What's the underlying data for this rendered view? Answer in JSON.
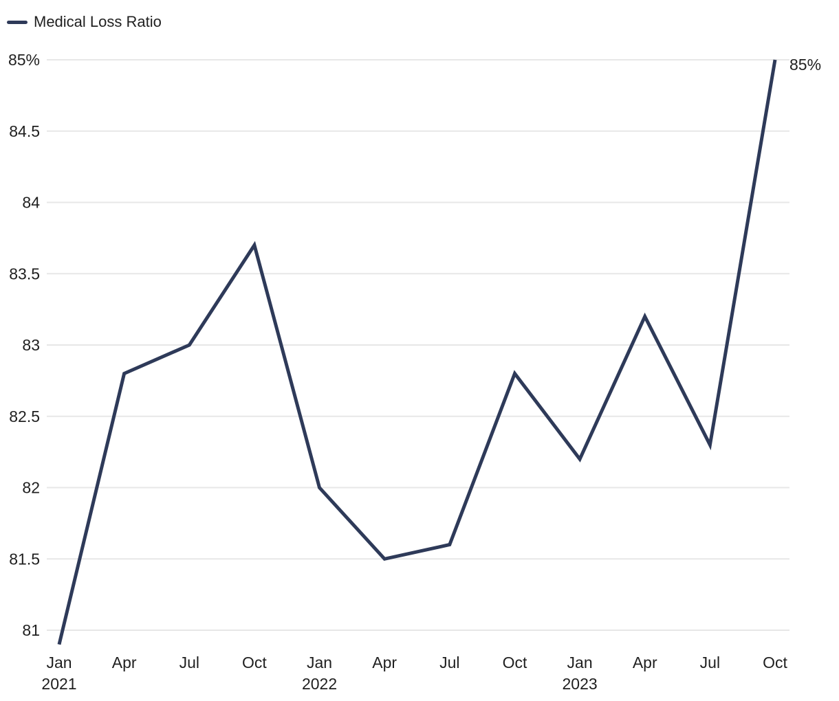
{
  "chart_data": {
    "type": "line",
    "title": "Medical Loss Ratio",
    "legend": {
      "label": "Medical Loss Ratio",
      "position": "top-left"
    },
    "x_labels": [
      {
        "month": "Jan",
        "year": "2021"
      },
      {
        "month": "Apr"
      },
      {
        "month": "Jul"
      },
      {
        "month": "Oct"
      },
      {
        "month": "Jan",
        "year": "2022"
      },
      {
        "month": "Apr"
      },
      {
        "month": "Jul"
      },
      {
        "month": "Oct"
      },
      {
        "month": "Jan",
        "year": "2023"
      },
      {
        "month": "Apr"
      },
      {
        "month": "Jul"
      },
      {
        "month": "Oct"
      }
    ],
    "series": [
      {
        "name": "Medical Loss Ratio",
        "color": "#2e3a59",
        "values": [
          80.9,
          82.8,
          83,
          83.7,
          82,
          81.5,
          81.6,
          82.8,
          82.2,
          83.2,
          82.3,
          85
        ]
      }
    ],
    "y_ticks": [
      {
        "value": 85,
        "label": "85%"
      },
      {
        "value": 84.5,
        "label": "84.5"
      },
      {
        "value": 84,
        "label": "84"
      },
      {
        "value": 83.5,
        "label": "83.5"
      },
      {
        "value": 83,
        "label": "83"
      },
      {
        "value": 82.5,
        "label": "82.5"
      },
      {
        "value": 82,
        "label": "82"
      },
      {
        "value": 81.5,
        "label": "81.5"
      },
      {
        "value": 81,
        "label": "81"
      }
    ],
    "ylim": [
      81,
      85
    ],
    "end_label": "85%",
    "grid": "horizontal",
    "colors": {
      "line": "#2e3a59",
      "gridline": "#e7e7e7",
      "text": "#1f1f1f",
      "background": "#ffffff"
    }
  }
}
